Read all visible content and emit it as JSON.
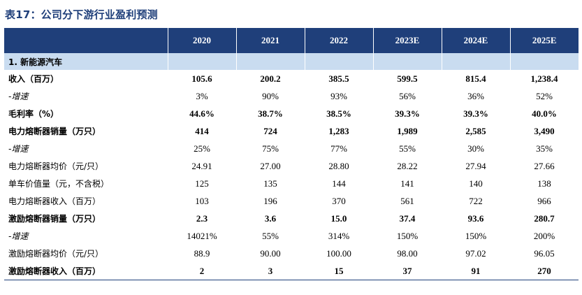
{
  "title": "表17：公司分下游行业盈利预测",
  "columns": [
    "2020",
    "2021",
    "2022",
    "2023E",
    "2024E",
    "2025E"
  ],
  "section": "1. 新能源汽车",
  "rows": [
    {
      "label": "收入（百万）",
      "style": "bold",
      "values": [
        "105.6",
        "200.2",
        "385.5",
        "599.5",
        "815.4",
        "1,238.4"
      ]
    },
    {
      "label": "-增速",
      "style": "sub",
      "values": [
        "3%",
        "90%",
        "93%",
        "56%",
        "36%",
        "52%"
      ]
    },
    {
      "label": "毛利率（%）",
      "style": "bold",
      "values": [
        "44.6%",
        "38.7%",
        "38.5%",
        "39.3%",
        "39.3%",
        "40.0%"
      ]
    },
    {
      "label": "电力熔断器销量（万只）",
      "style": "bold",
      "values": [
        "414",
        "724",
        "1,283",
        "1,989",
        "2,585",
        "3,490"
      ]
    },
    {
      "label": "-增速",
      "style": "sub",
      "values": [
        "25%",
        "75%",
        "77%",
        "55%",
        "30%",
        "35%"
      ]
    },
    {
      "label": "电力熔断器均价（元/只）",
      "style": "normal",
      "values": [
        "24.91",
        "27.00",
        "28.80",
        "28.22",
        "27.94",
        "27.66"
      ]
    },
    {
      "label": "单车价值量（元，不含税）",
      "style": "normal",
      "values": [
        "125",
        "135",
        "144",
        "141",
        "140",
        "138"
      ]
    },
    {
      "label": "电力熔断器收入（百万）",
      "style": "normal",
      "values": [
        "103",
        "196",
        "370",
        "561",
        "722",
        "966"
      ]
    },
    {
      "label": "激励熔断器销量（万只）",
      "style": "bold",
      "values": [
        "2.3",
        "3.6",
        "15.0",
        "37.4",
        "93.6",
        "280.7"
      ]
    },
    {
      "label": "-增速",
      "style": "sub",
      "values": [
        "14021%",
        "55%",
        "314%",
        "150%",
        "150%",
        "200%"
      ]
    },
    {
      "label": "激励熔断器均价（元/只）",
      "style": "normal",
      "values": [
        "88.9",
        "90.00",
        "100.00",
        "98.00",
        "97.02",
        "96.05"
      ]
    },
    {
      "label": "激励熔断器收入（百万）",
      "style": "bold",
      "values": [
        "2",
        "3",
        "15",
        "37",
        "91",
        "270"
      ]
    }
  ]
}
